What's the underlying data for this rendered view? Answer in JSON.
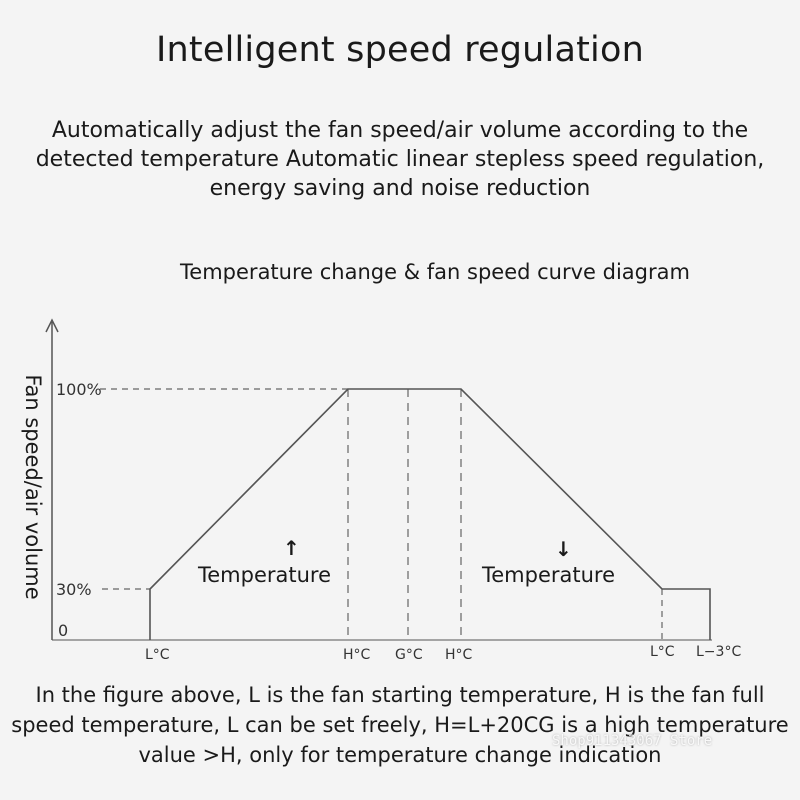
{
  "header": {
    "title": "Intelligent speed regulation",
    "subtitle": "Automatically adjust the fan speed/air volume according to the detected temperature Automatic linear stepless speed regulation, energy saving and noise reduction"
  },
  "diagram": {
    "title": "Temperature change & fan speed curve diagram",
    "y_axis_label": "Fan speed/air volume",
    "y_ticks": {
      "full": "100%",
      "start": "30%",
      "zero": "0"
    },
    "x_ticks": [
      "L°C",
      "H°C",
      "G°C",
      "H°C",
      "L°C",
      "L−3°C"
    ],
    "rising_label": "Temperature",
    "rising_arrow": "↑",
    "falling_label": "Temperature",
    "falling_arrow": "↓",
    "line_color": "#555555"
  },
  "footer": {
    "text": "In the figure above, L is the fan starting temperature, H is the fan full speed temperature, L can be set freely, H=L+20CG is a high temperature value >H, only for temperature change indication"
  },
  "watermark": {
    "text": "Shop911343067 Store"
  }
}
